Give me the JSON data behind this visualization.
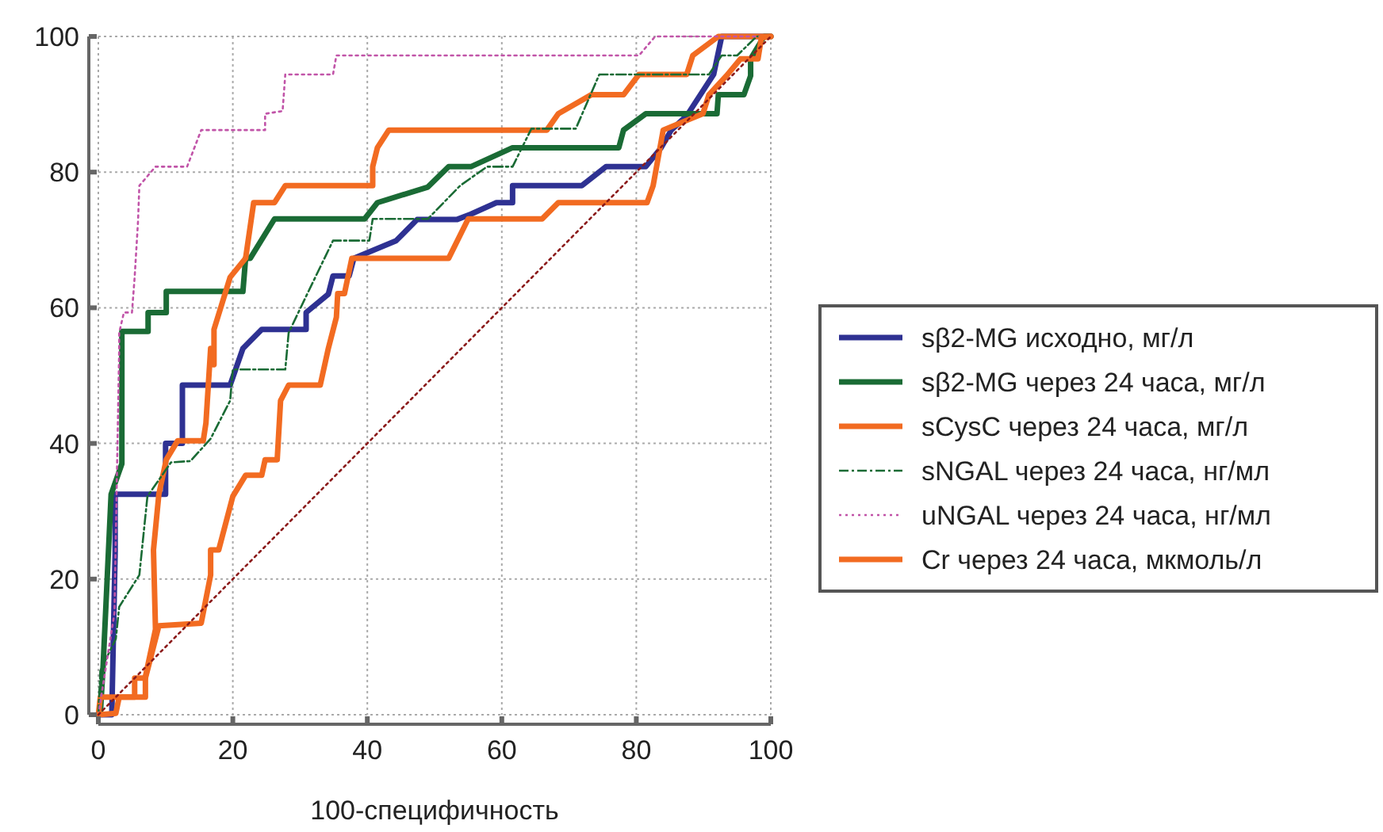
{
  "chart_data": {
    "type": "line",
    "xlabel": "100-специфичность",
    "xlim": [
      0,
      100
    ],
    "ylim": [
      0,
      100
    ],
    "xticks": [
      0,
      20,
      40,
      60,
      80,
      100
    ],
    "yticks": [
      0,
      20,
      40,
      60,
      80,
      100
    ],
    "grid": true,
    "legend": "right",
    "series": [
      {
        "name": "sβ2-MG исходно, мг/л",
        "color": "#2e3192",
        "line_style": "solid",
        "x": [
          0,
          2,
          2.5,
          2.5,
          10,
          10,
          12.5,
          12.5,
          19.6,
          21.5,
          24.3,
          30.9,
          30.9,
          34.2,
          34.9,
          37.3,
          38,
          44.3,
          47.4,
          53.3,
          55.4,
          59.2,
          61.6,
          61.6,
          71.9,
          75.5,
          81.4,
          83.7,
          85.2,
          87.5,
          91.5,
          92.7,
          100
        ],
        "values": [
          0,
          0,
          24,
          32.5,
          32.5,
          40,
          40,
          48.6,
          48.6,
          54,
          56.8,
          56.8,
          59.3,
          62,
          64.7,
          64.7,
          67.3,
          69.9,
          73,
          73,
          73.8,
          75.5,
          75.5,
          78,
          78,
          80.8,
          80.8,
          83.6,
          86.2,
          88.3,
          94.4,
          100,
          100
        ]
      },
      {
        "name": "sβ2-MG через 24 часа, мг/л",
        "color": "#1a6b35",
        "line_style": "solid",
        "x": [
          0,
          0.3,
          0.7,
          1.9,
          3.5,
          3.5,
          7.4,
          7.4,
          10.1,
          10.1,
          21.5,
          21.9,
          22.6,
          26.2,
          39.6,
          41.5,
          49,
          52.1,
          55.4,
          61.6,
          77.4,
          78.1,
          81.4,
          92,
          92.2,
          96,
          97,
          97,
          99,
          100
        ],
        "values": [
          0,
          0.2,
          7,
          32.5,
          37,
          56.5,
          56.5,
          59.3,
          59.3,
          62.4,
          62.4,
          67.3,
          67.3,
          73.1,
          73.1,
          75.5,
          77.8,
          80.8,
          80.8,
          83.6,
          83.6,
          86.2,
          88.6,
          88.6,
          91.4,
          91.4,
          94.2,
          96.7,
          100,
          100
        ]
      },
      {
        "name": "sCysC через 24 часа, мг/л",
        "color": "#f26b21",
        "line_style": "solid",
        "x": [
          0,
          0.3,
          7,
          7,
          8.5,
          8.2,
          9,
          10.1,
          11.8,
          15.6,
          16,
          16.7,
          17.2,
          17.2,
          19.6,
          21.9,
          23.1,
          26.2,
          27.8,
          40.8,
          40.8,
          41.5,
          43.2,
          66.7,
          68.4,
          73.3,
          78.1,
          80.4,
          87.5,
          88.4,
          92.2,
          100
        ],
        "values": [
          0,
          2.6,
          2.6,
          5.6,
          12.6,
          24.3,
          32.5,
          37.6,
          40.4,
          40.4,
          43,
          54,
          51.6,
          56.8,
          64.5,
          67.3,
          75.5,
          75.5,
          78,
          78,
          80.8,
          83.6,
          86.2,
          86.2,
          88.6,
          91.4,
          91.4,
          94.4,
          94.4,
          97.2,
          100,
          100
        ]
      },
      {
        "name": "sNGAL через 24 часа, нг/мл",
        "color": "#1a6b35",
        "line_style": "dashed",
        "x": [
          0,
          0.3,
          2.6,
          3.1,
          6.1,
          7.3,
          10.8,
          13.7,
          16.7,
          19.6,
          20,
          27.8,
          28.3,
          30.9,
          34.9,
          40.3,
          40.8,
          49,
          53.8,
          57.8,
          61.6,
          64.4,
          71,
          74.5,
          90.8,
          92.7,
          95,
          97.9,
          100
        ],
        "values": [
          0,
          6.5,
          11.2,
          15.9,
          20.6,
          32.2,
          37.2,
          37.4,
          40.7,
          46.3,
          50.9,
          50.9,
          56.3,
          61.7,
          69.9,
          69.9,
          73.1,
          73.1,
          78,
          80.8,
          80.8,
          86.4,
          86.4,
          94.4,
          94.4,
          97.2,
          97.2,
          100,
          100
        ]
      },
      {
        "name": "uNGAL через 24 часа, нг/мл",
        "color": "#c154a8",
        "line_style": "dotted",
        "x": [
          0,
          2.4,
          3.1,
          3.1,
          3.8,
          5,
          5.4,
          5.9,
          6.1,
          8.5,
          13.2,
          15.3,
          24.8,
          24.8,
          27.4,
          27.8,
          34.9,
          35.4,
          80.4,
          82.8,
          100
        ],
        "values": [
          0,
          15,
          54,
          56.3,
          59.3,
          59.3,
          64.5,
          72.7,
          78,
          80.8,
          80.8,
          86.2,
          86.2,
          88.6,
          89,
          94.4,
          94.4,
          97.2,
          97.2,
          100,
          100
        ]
      },
      {
        "name": "Cr через 24 часа, мкмоль/л",
        "color": "#f26b21",
        "line_style": "solid",
        "x": [
          0,
          2.6,
          3.1,
          5.4,
          5.4,
          7,
          9,
          15.3,
          16.7,
          16.7,
          17.9,
          20,
          21.9,
          24.3,
          24.8,
          26.6,
          27.1,
          28.3,
          33,
          34.2,
          35.4,
          35.6,
          36.6,
          37.7,
          52.1,
          55,
          66,
          68.4,
          81.6,
          82.5,
          84,
          89.9,
          90.8,
          93.4,
          95.5,
          98.1,
          98.6,
          100
        ],
        "values": [
          0,
          0.2,
          2.6,
          2.6,
          5.4,
          5.4,
          13.1,
          13.5,
          20.6,
          24.3,
          24.3,
          32.2,
          35.3,
          35.3,
          37.6,
          37.6,
          46.3,
          48.6,
          48.6,
          54,
          58.6,
          62.1,
          62.1,
          67.3,
          67.3,
          73.1,
          73.1,
          75.5,
          75.5,
          78,
          86.2,
          88.6,
          91.4,
          94.2,
          96.7,
          96.7,
          99.8,
          100
        ]
      },
      {
        "color": "#8b1a1a",
        "line_style": "dotted",
        "x": [
          0,
          100
        ],
        "values": [
          0,
          100
        ]
      }
    ]
  }
}
